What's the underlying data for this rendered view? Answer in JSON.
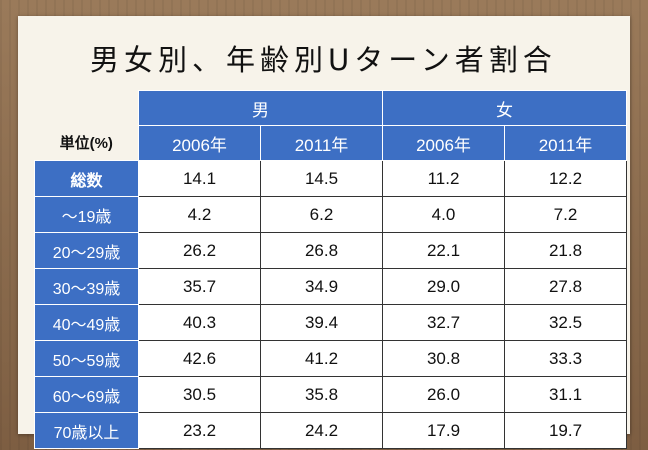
{
  "title": "男女別、年齢別Uターン者割合",
  "table": {
    "unit_label": "単位(%)",
    "groups": [
      "男",
      "女"
    ],
    "years": [
      "2006年",
      "2011年",
      "2006年",
      "2011年"
    ],
    "rows": [
      {
        "label": "総数",
        "values": [
          "14.1",
          "14.5",
          "11.2",
          "12.2"
        ]
      },
      {
        "label": "～19歳",
        "values": [
          "4.2",
          "6.2",
          "4.0",
          "7.2"
        ]
      },
      {
        "label": "20～29歳",
        "values": [
          "26.2",
          "26.8",
          "22.1",
          "21.8"
        ]
      },
      {
        "label": "30～39歳",
        "values": [
          "35.7",
          "34.9",
          "29.0",
          "27.8"
        ]
      },
      {
        "label": "40～49歳",
        "values": [
          "40.3",
          "39.4",
          "32.7",
          "32.5"
        ]
      },
      {
        "label": "50～59歳",
        "values": [
          "42.6",
          "41.2",
          "30.8",
          "33.3"
        ]
      },
      {
        "label": "60～69歳",
        "values": [
          "30.5",
          "35.8",
          "26.0",
          "31.1"
        ]
      },
      {
        "label": "70歳以上",
        "values": [
          "23.2",
          "24.2",
          "17.9",
          "19.7"
        ]
      }
    ]
  },
  "colors": {
    "header_blue": "#3d6fc4",
    "paper": "#f7f3ea",
    "wood": "#8a6a4c"
  }
}
